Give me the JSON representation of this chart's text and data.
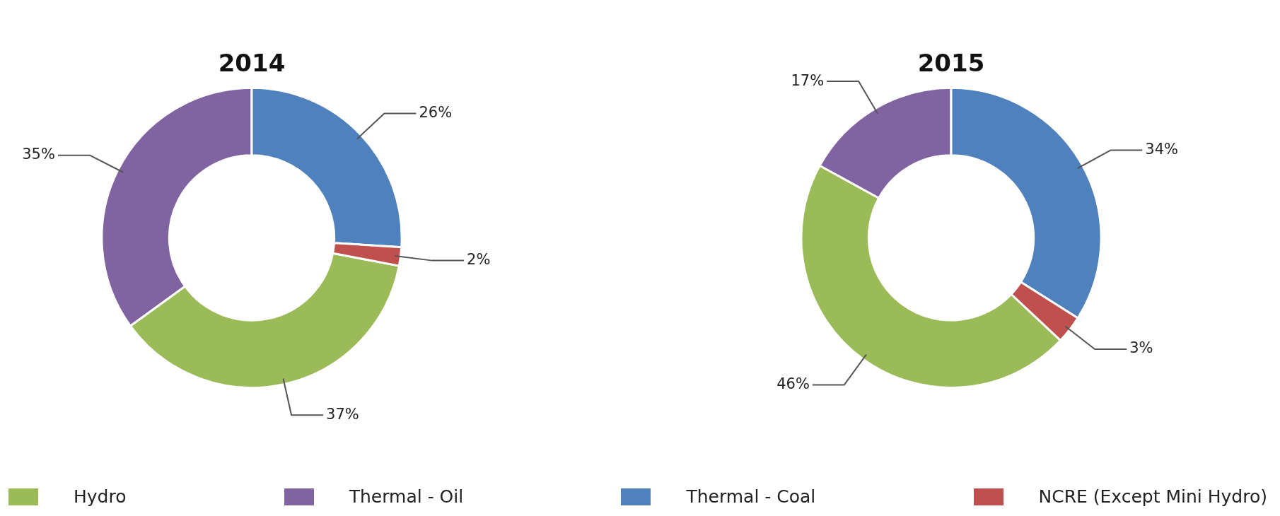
{
  "chart_data": [
    {
      "type": "donut",
      "title": "2014",
      "categories": [
        "Hydro",
        "Thermal - Oil",
        "Thermal - Coal",
        "NCRE (Except Mini Hydro)"
      ],
      "values": [
        37,
        35,
        26,
        2
      ],
      "colors": [
        "#9bbb59",
        "#8064a2",
        "#4f81bd",
        "#c0504d"
      ],
      "value_labels": [
        "37%",
        "35%",
        "26%",
        "2%"
      ],
      "legend": "bottom"
    },
    {
      "type": "donut",
      "title": "2015",
      "categories": [
        null,
        null,
        null,
        null
      ],
      "values": [
        46,
        17,
        34,
        3
      ],
      "colors": [
        "#9bbb59",
        "#8064a2",
        "#4f81bd",
        "#c0504d"
      ],
      "value_labels": [
        "46%",
        "17%",
        "34%",
        "3%"
      ]
    }
  ]
}
